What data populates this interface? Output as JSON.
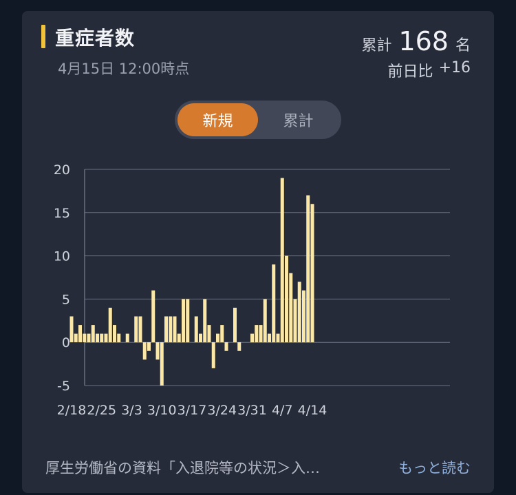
{
  "card": {
    "title": "重症者数",
    "date": "4月15日 12:00時点",
    "total_label": "累計",
    "total_value": "168",
    "total_unit": "名",
    "diff_label": "前日比",
    "diff_value": "+16"
  },
  "toggle": {
    "new_label": "新規",
    "cumulative_label": "累計"
  },
  "footer": {
    "source_text": "厚生労働省の資料「入退院等の状況＞入…",
    "more_label": "もっと読む"
  },
  "colors": {
    "bar": "#fbe7a6",
    "accent": "#f0c33a",
    "toggle_active": "#d67a2e",
    "link": "#8fb0dc"
  },
  "chart_data": {
    "type": "bar",
    "ylim": [
      -5,
      20
    ],
    "yticks": [
      20,
      15,
      10,
      5,
      0,
      -5
    ],
    "x_tick_labels": [
      "2/18",
      "2/25",
      "3/3",
      "3/10",
      "3/17",
      "3/24",
      "3/31",
      "4/7",
      "4/14"
    ],
    "x_start": "2/18",
    "values": [
      3,
      1,
      2,
      1,
      1,
      2,
      1,
      1,
      1,
      4,
      2,
      1,
      0,
      1,
      0,
      3,
      3,
      -2,
      -1,
      6,
      -2,
      -5,
      3,
      3,
      3,
      1,
      5,
      5,
      0,
      3,
      1,
      5,
      2,
      -3,
      1,
      2,
      -1,
      0,
      4,
      -1,
      0,
      0,
      1,
      2,
      2,
      5,
      1,
      9,
      1,
      19,
      10,
      8,
      5,
      7,
      6,
      17,
      16
    ],
    "grid": true
  }
}
